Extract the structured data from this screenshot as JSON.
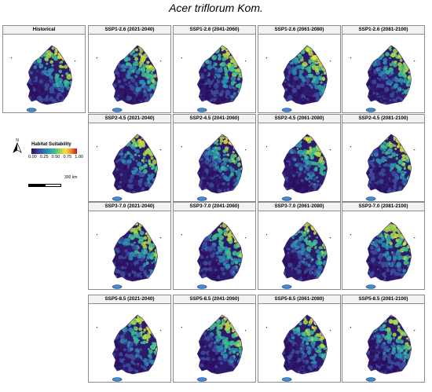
{
  "title": "Acer triflorum Kom.",
  "panels": [
    {
      "label": "Historical",
      "scenario": "historical"
    },
    {
      "label": "SSP1-2.6 (2021-2040)",
      "scenario": "SSP1-2.6"
    },
    {
      "label": "SSP1-2.6 (2041-2060)",
      "scenario": "SSP1-2.6"
    },
    {
      "label": "SSP1-2.6 (2061-2080)",
      "scenario": "SSP1-2.6"
    },
    {
      "label": "SSP1-2.6 (2081-2100)",
      "scenario": "SSP1-2.6"
    },
    {
      "label": "SSP2-4.5 (2021-2040)",
      "scenario": "SSP2-4.5"
    },
    {
      "label": "SSP2-4.5 (2041-2060)",
      "scenario": "SSP2-4.5"
    },
    {
      "label": "SSP2-4.5 (2061-2080)",
      "scenario": "SSP2-4.5"
    },
    {
      "label": "SSP2-4.5 (2081-2100)",
      "scenario": "SSP2-4.5"
    },
    {
      "label": "SSP3-7.0 (2021-2040)",
      "scenario": "SSP3-7.0"
    },
    {
      "label": "SSP3-7.0 (2041-2060)",
      "scenario": "SSP3-7.0"
    },
    {
      "label": "SSP3-7.0 (2061-2080)",
      "scenario": "SSP3-7.0"
    },
    {
      "label": "SSP3-7.0 (2081-2100)",
      "scenario": "SSP3-7.0"
    },
    {
      "label": "SSP5-8.5 (2021-2040)",
      "scenario": "SSP5-8.5"
    },
    {
      "label": "SSP5-8.5 (2041-2060)",
      "scenario": "SSP5-8.5"
    },
    {
      "label": "SSP5-8.5 (2061-2080)",
      "scenario": "SSP5-8.5"
    },
    {
      "label": "SSP5-8.5 (2081-2100)",
      "scenario": "SSP5-8.5"
    }
  ],
  "legend": {
    "title": "Habitat Suitability",
    "ticks": [
      "0.00",
      "0.25",
      "0.50",
      "0.75",
      "1.00"
    ],
    "colors": [
      "#2b0f5e",
      "#3b4fa0",
      "#2b8fb0",
      "#3fbf8f",
      "#a8d94a",
      "#f3e23a",
      "#f08a2a",
      "#c0181f"
    ]
  },
  "north_arrow": {
    "label": "N"
  },
  "scale_bar": {
    "label": "300 km"
  }
}
